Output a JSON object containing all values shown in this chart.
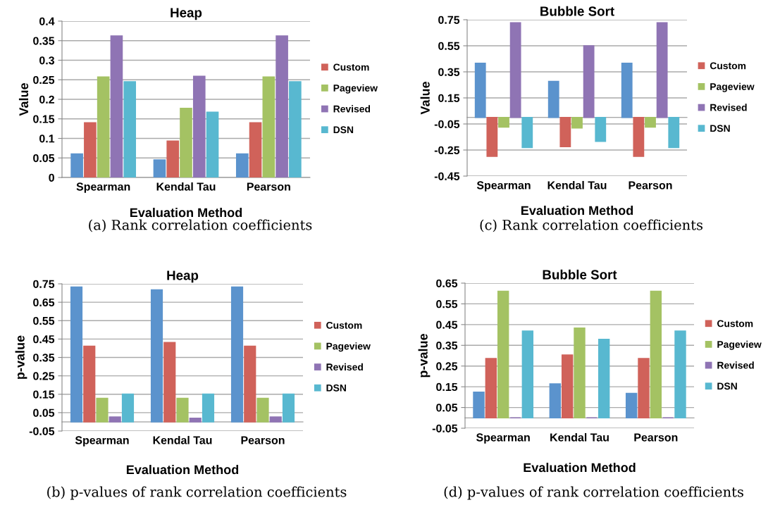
{
  "chart_data": [
    {
      "type": "bar",
      "title": "Heap",
      "xlabel": "Evaluation Method",
      "ylabel": "Value",
      "categories": [
        "Spearman",
        "Kendal Tau",
        "Pearson"
      ],
      "series": [
        {
          "color": "#5b93cd",
          "values": [
            0.06,
            0.045,
            0.06
          ]
        },
        {
          "name": "Custom",
          "color": "#d0625a",
          "values": [
            0.14,
            0.093,
            0.14
          ]
        },
        {
          "name": "Pageview",
          "color": "#a4c263",
          "values": [
            0.257,
            0.177,
            0.257
          ]
        },
        {
          "name": "Revised",
          "color": "#8f74b4",
          "values": [
            0.362,
            0.259,
            0.362
          ]
        },
        {
          "name": "DSN",
          "color": "#58b8d0",
          "values": [
            0.245,
            0.167,
            0.245
          ]
        }
      ],
      "ylim": [
        0,
        0.4
      ],
      "yticks": [
        0,
        0.05,
        0.1,
        0.15,
        0.2,
        0.25,
        0.3,
        0.35,
        0.4
      ],
      "grid": "y",
      "legend": "right",
      "annotations": [
        "(a) Rank correlation coefficients"
      ]
    },
    {
      "type": "bar",
      "title": "Bubble Sort",
      "xlabel": "Evaluation Method",
      "ylabel": "Value",
      "categories": [
        "Spearman",
        "Kendal Tau",
        "Pearson"
      ],
      "series": [
        {
          "color": "#5b93cd",
          "values": [
            0.416,
            0.276,
            0.416
          ]
        },
        {
          "name": "Custom",
          "color": "#d0625a",
          "values": [
            -0.298,
            -0.224,
            -0.298
          ]
        },
        {
          "name": "Pageview",
          "color": "#a4c263",
          "values": [
            -0.074,
            -0.08,
            -0.074
          ]
        },
        {
          "name": "Revised",
          "color": "#8f74b4",
          "values": [
            0.726,
            0.55,
            0.726
          ]
        },
        {
          "name": "DSN",
          "color": "#58b8d0",
          "values": [
            -0.23,
            -0.184,
            -0.23
          ]
        }
      ],
      "ylim": [
        -0.45,
        0.75
      ],
      "yticks": [
        -0.45,
        -0.25,
        -0.05,
        0.15,
        0.35,
        0.55,
        0.75
      ],
      "grid": "y",
      "legend": "right",
      "annotations": [
        "(c) Rank correlation coefficients"
      ]
    },
    {
      "type": "bar",
      "title": "Heap",
      "xlabel": "Evaluation Method",
      "ylabel": "p-value",
      "categories": [
        "Spearman",
        "Kendal Tau",
        "Pearson"
      ],
      "series": [
        {
          "color": "#5b93cd",
          "values": [
            0.732,
            0.717,
            0.732
          ]
        },
        {
          "name": "Custom",
          "color": "#d0625a",
          "values": [
            0.411,
            0.431,
            0.411
          ]
        },
        {
          "name": "Pageview",
          "color": "#a4c263",
          "values": [
            0.128,
            0.128,
            0.128
          ]
        },
        {
          "name": "Revised",
          "color": "#8f74b4",
          "values": [
            0.026,
            0.02,
            0.026
          ]
        },
        {
          "name": "DSN",
          "color": "#58b8d0",
          "values": [
            0.151,
            0.151,
            0.151
          ]
        }
      ],
      "ylim": [
        -0.05,
        0.75
      ],
      "yticks": [
        -0.05,
        0.05,
        0.15,
        0.25,
        0.35,
        0.45,
        0.55,
        0.65,
        0.75
      ],
      "grid": "y",
      "legend": "right",
      "annotations": [
        "(b) p-values of rank correlation coefficients"
      ]
    },
    {
      "type": "bar",
      "title": "Bubble Sort",
      "xlabel": "Evaluation Method",
      "ylabel": "p-value",
      "categories": [
        "Spearman",
        "Kendal Tau",
        "Pearson"
      ],
      "series": [
        {
          "color": "#5b93cd",
          "values": [
            0.124,
            0.164,
            0.118
          ]
        },
        {
          "name": "Custom",
          "color": "#d0625a",
          "values": [
            0.286,
            0.303,
            0.286
          ]
        },
        {
          "name": "Pageview",
          "color": "#a4c263",
          "values": [
            0.611,
            0.433,
            0.611
          ]
        },
        {
          "name": "Revised",
          "color": "#8f74b4",
          "values": [
            0,
            0,
            0
          ]
        },
        {
          "name": "DSN",
          "color": "#58b8d0",
          "values": [
            0.419,
            0.379,
            0.419
          ]
        }
      ],
      "ylim": [
        -0.05,
        0.65
      ],
      "yticks": [
        -0.05,
        0.05,
        0.15,
        0.25,
        0.35,
        0.45,
        0.55,
        0.65
      ],
      "grid": "y",
      "legend": "right",
      "annotations": [
        "(d) p-values of rank correlation coefficients"
      ]
    }
  ]
}
